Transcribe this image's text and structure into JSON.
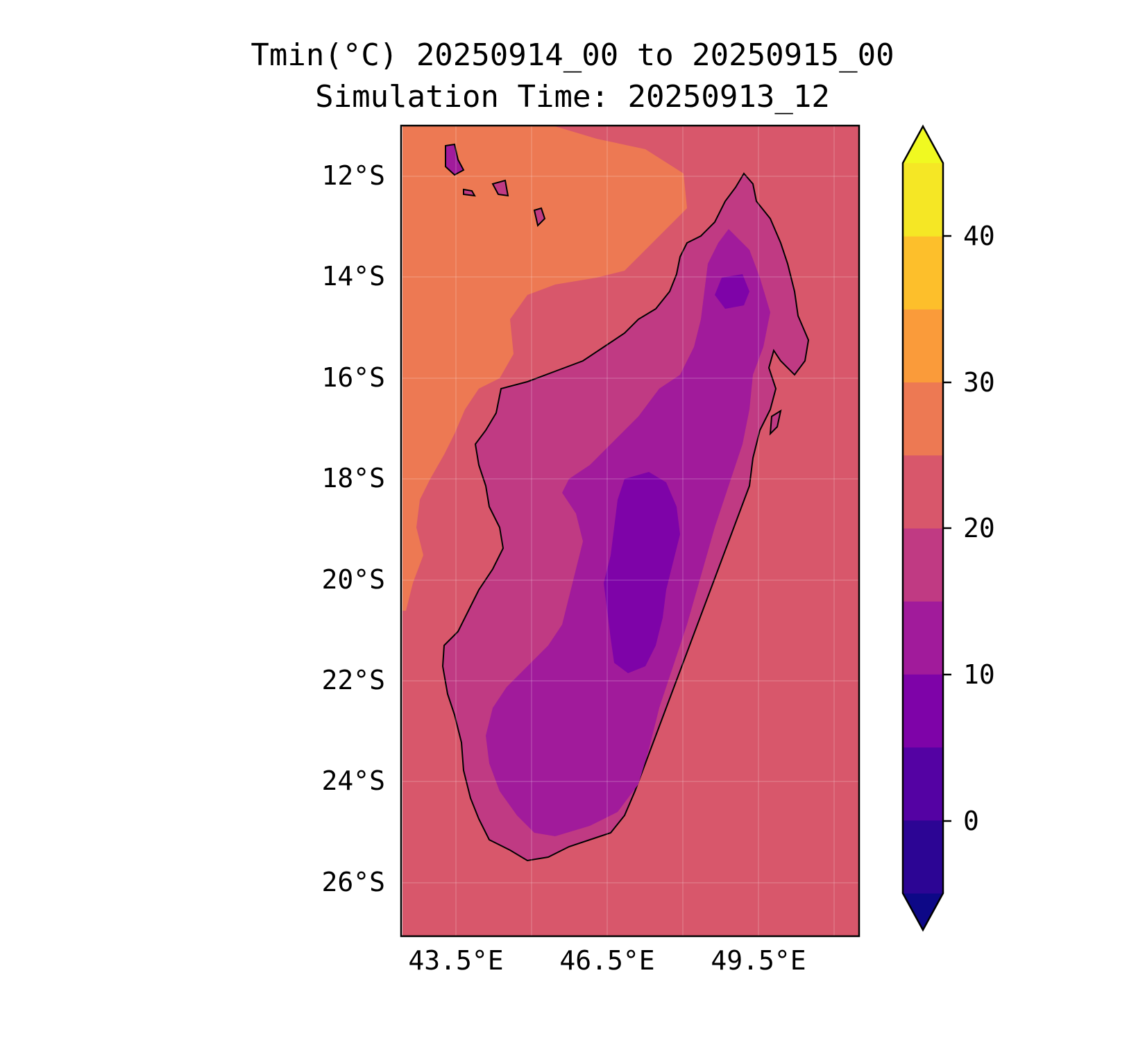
{
  "title": {
    "line1": "Tmin(°C) 20250914_00 to 20250915_00",
    "line2": "Simulation Time: 20250913_12"
  },
  "map": {
    "lat_ticks": [
      "12°S",
      "14°S",
      "16°S",
      "18°S",
      "20°S",
      "22°S",
      "24°S",
      "26°S"
    ],
    "lon_ticks": [
      "43.5°E",
      "46.5°E",
      "49.5°E"
    ],
    "extent": {
      "lon": [
        42.4,
        51.6
      ],
      "lat": [
        -27.0,
        -11.0
      ]
    }
  },
  "colorbar": {
    "ticks": [
      "0",
      "10",
      "20",
      "30",
      "40"
    ],
    "levels": [
      -5,
      0,
      5,
      10,
      15,
      20,
      25,
      30,
      35,
      40,
      45
    ],
    "colors": [
      "#0d0887",
      "#2c0594",
      "#5402a3",
      "#7e03a8",
      "#a11b9b",
      "#c03a83",
      "#d8576b",
      "#ed7953",
      "#fa9b3a",
      "#fdbf2b",
      "#f5e725",
      "#f0f921"
    ]
  },
  "fields": {
    "ocean_color": "#d8576b",
    "nw_warm_color": "#ed7953",
    "coast_color": "#000000"
  }
}
